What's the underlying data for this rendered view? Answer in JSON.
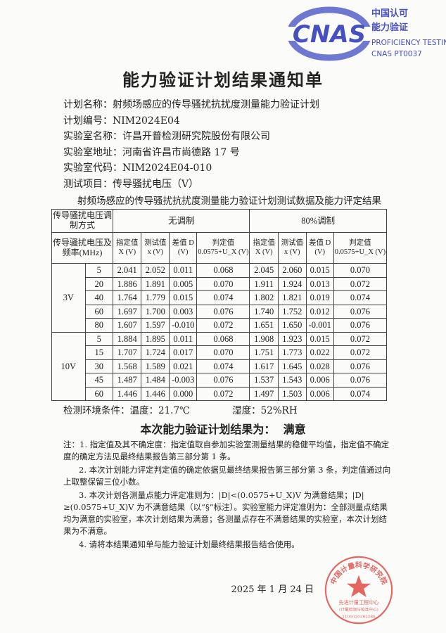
{
  "logo": {
    "mark": "CNAS",
    "line1": "中国认可",
    "line2": "能力验证",
    "line3": "PROFICIENCY TESTING",
    "line4": "CNAS PT0037",
    "color": "#4650c0"
  },
  "title": "能力验证计划结果通知单",
  "info": [
    {
      "label": "计划名称：",
      "value": "射频场感应的传导骚扰抗扰度测量能力验证计划"
    },
    {
      "label": "计划编号：",
      "value": "NIM2024E04"
    },
    {
      "label": "实验室名称：",
      "value": "许昌开普检测研究院股份有限公司"
    },
    {
      "label": "实验室地址：",
      "value": "河南省许昌市尚德路 17 号"
    },
    {
      "label": "实验室代码：",
      "value": "NIM2024E04-010"
    },
    {
      "label": "测试项目：",
      "value": "传导骚扰电压（V）"
    }
  ],
  "table": {
    "caption": "射频场感应的传导骚扰抗扰度测量能力验证计划测试数据及能力评定结果",
    "mod_header": "传导骚扰电压调制方式",
    "mod_groups": [
      "无调制",
      "80%调制"
    ],
    "freq_header": "传导骚扰电压及频率(MHz)",
    "col_headers": [
      "指定值 X (V)",
      "测试值 x (V)",
      "差值 D (V)",
      "判定值 0.0575+U_X (V)"
    ],
    "groups": [
      {
        "level": "3V",
        "rows": [
          {
            "f": "5",
            "v": [
              "2.041",
              "2.052",
              "0.011",
              "0.068",
              "2.045",
              "2.060",
              "0.015",
              "0.070"
            ]
          },
          {
            "f": "20",
            "v": [
              "1.886",
              "1.891",
              "0.005",
              "0.070",
              "1.911",
              "1.924",
              "0.013",
              "0.072"
            ]
          },
          {
            "f": "40",
            "v": [
              "1.764",
              "1.779",
              "0.015",
              "0.074",
              "1.802",
              "1.821",
              "0.019",
              "0.074"
            ]
          },
          {
            "f": "60",
            "v": [
              "1.697",
              "1.700",
              "0.003",
              "0.076",
              "1.740",
              "1.752",
              "0.012",
              "0.076"
            ]
          },
          {
            "f": "80",
            "v": [
              "1.607",
              "1.597",
              "-0.010",
              "0.072",
              "1.651",
              "1.650",
              "-0.001",
              "0.076"
            ]
          }
        ]
      },
      {
        "level": "10V",
        "rows": [
          {
            "f": "5",
            "v": [
              "1.884",
              "1.895",
              "0.011",
              "0.068",
              "1.908",
              "1.923",
              "0.015",
              "0.072"
            ]
          },
          {
            "f": "15",
            "v": [
              "1.707",
              "1.724",
              "0.017",
              "0.070",
              "1.751",
              "1.773",
              "0.022",
              "0.072"
            ]
          },
          {
            "f": "30",
            "v": [
              "1.568",
              "1.589",
              "0.021",
              "0.074",
              "1.617",
              "1.645",
              "0.028",
              "0.076"
            ]
          },
          {
            "f": "45",
            "v": [
              "1.487",
              "1.484",
              "-0.003",
              "0.076",
              "1.537",
              "1.543",
              "0.006",
              "0.076"
            ]
          },
          {
            "f": "60",
            "v": [
              "1.446",
              "1.446",
              "0.000",
              "0.072",
              "1.497",
              "1.503",
              "0.006",
              "0.074"
            ]
          }
        ]
      }
    ]
  },
  "env": {
    "label": "检测环境条件：",
    "temp": "温度：21.7℃",
    "humidity": "湿度：52%RH"
  },
  "result": {
    "label": "本次能力验证计划结果为：",
    "value": "满意"
  },
  "notes": [
    "注：1. 指定值及其不确定度：指定值取自参加实验室测量结果的稳健平均值，指定值不确定度的确定方法见最终结果报告第三部分第 1 条。",
    "2. 本次计划能力评定判定值的确定依据见最终结果报告第三部分第 3 条，判定值通过向上取整保留三位小数。",
    "3. 本次计划各测量点能力评定准则为：|D|<(0.0575+U_X)V 为满意结果；|D|≥(0.0575+U_X)V 为不满意结果（以“§”标注）。实验室能力评定准则为：全部测量点结果均为满意的实验室，本次计划结果为满意；各测量点存在不满意结果的实验室，本次计划结果为不满意。",
    "4. 请将本结果通知单与能力验证计划最终结果报告结合使用。"
  ],
  "stamp": {
    "top": "中国计量科学研究院",
    "middle": "先进计量工程中心",
    "bottom": "(计量检测与校准中心)",
    "code": "1101020392286",
    "color": "#e0403a"
  },
  "date": "2025 年 1 月 24 日"
}
